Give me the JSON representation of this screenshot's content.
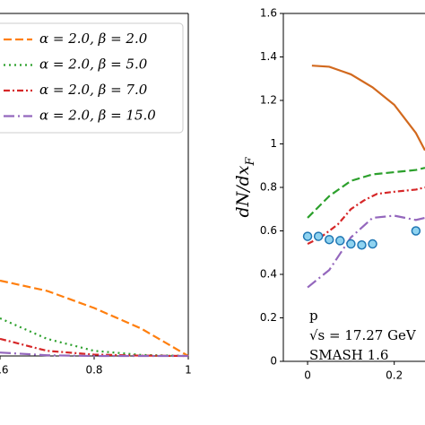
{
  "chart_data": [
    {
      "type": "line",
      "xlim": [
        0.6,
        1.0
      ],
      "xticks": [
        0.6,
        0.8,
        1.0
      ],
      "ylim": [
        0,
        1
      ],
      "legend": "upper right",
      "series": [
        {
          "name": "α = 2.0,  β = 2.0",
          "color": "#ff7f0e",
          "linestyle": "dashed",
          "x": [
            0.6,
            0.7,
            0.8,
            0.9,
            1.0
          ],
          "values": [
            0.22,
            0.19,
            0.14,
            0.08,
            0.0
          ]
        },
        {
          "name": "α = 2.0,  β = 5.0",
          "color": "#2ca02c",
          "linestyle": "dotted",
          "x": [
            0.6,
            0.7,
            0.8,
            0.9,
            1.0
          ],
          "values": [
            0.11,
            0.05,
            0.015,
            0.003,
            0.0
          ]
        },
        {
          "name": "α = 2.0,  β = 7.0",
          "color": "#d62728",
          "linestyle": "dashdot",
          "x": [
            0.6,
            0.7,
            0.8,
            0.9,
            1.0
          ],
          "values": [
            0.05,
            0.015,
            0.004,
            0.001,
            0.0
          ]
        },
        {
          "name": "α = 2.0,  β = 15.0",
          "color": "#9467bd",
          "linestyle": "longdashdot",
          "x": [
            0.6,
            0.7,
            0.8,
            0.9,
            1.0
          ],
          "values": [
            0.01,
            0.002,
            0.0,
            0.0,
            0.0
          ]
        }
      ]
    },
    {
      "type": "line",
      "y_label": "dN/dx",
      "y_label_sub": "F",
      "annotations": [
        "p",
        "√s = 17.27 GeV",
        "SMASH 1.6"
      ],
      "xlim": [
        -0.056,
        0.271
      ],
      "xticks": [
        0.0,
        0.2
      ],
      "ylim": [
        0,
        1.6
      ],
      "yticks": [
        0.0,
        0.2,
        0.4,
        0.6,
        0.8,
        1.0,
        1.2,
        1.4,
        1.6
      ],
      "series": [
        {
          "color": "#d2691e",
          "linestyle": "solid",
          "x": [
            0.01,
            0.05,
            0.1,
            0.15,
            0.2,
            0.25,
            0.271
          ],
          "values": [
            1.36,
            1.355,
            1.32,
            1.26,
            1.18,
            1.05,
            0.97
          ]
        },
        {
          "color": "#2ca02c",
          "linestyle": "dashed",
          "x": [
            0.0,
            0.05,
            0.1,
            0.15,
            0.2,
            0.25,
            0.271
          ],
          "values": [
            0.66,
            0.76,
            0.83,
            0.86,
            0.87,
            0.88,
            0.89
          ]
        },
        {
          "color": "#d62728",
          "linestyle": "dashdot",
          "x": [
            0.0,
            0.03,
            0.07,
            0.1,
            0.13,
            0.16,
            0.2,
            0.25,
            0.271
          ],
          "values": [
            0.54,
            0.57,
            0.63,
            0.7,
            0.74,
            0.77,
            0.78,
            0.79,
            0.8
          ]
        },
        {
          "color": "#9467bd",
          "linestyle": "longdashdot",
          "x": [
            0.0,
            0.05,
            0.1,
            0.15,
            0.2,
            0.25,
            0.271
          ],
          "values": [
            0.34,
            0.42,
            0.57,
            0.66,
            0.67,
            0.65,
            0.66
          ]
        },
        {
          "color": "#1f77b4",
          "linestyle": "none",
          "marker": "circle",
          "x": [
            0.0,
            0.025,
            0.05,
            0.075,
            0.1,
            0.125,
            0.15,
            0.25
          ],
          "values": [
            0.575,
            0.575,
            0.56,
            0.555,
            0.54,
            0.535,
            0.54,
            0.6
          ]
        }
      ]
    }
  ]
}
